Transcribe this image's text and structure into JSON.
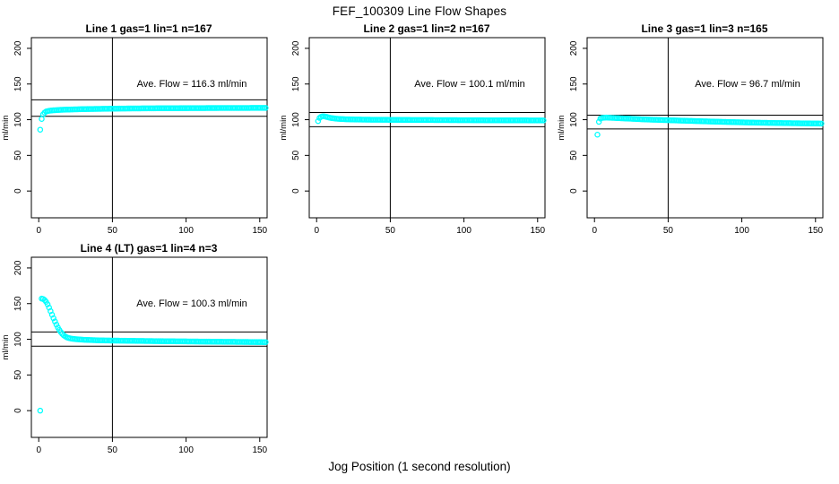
{
  "figure": {
    "title": "FEF_100309  Line Flow Shapes",
    "xlabel": "Jog Position (1 second resolution)"
  },
  "chart_data": {
    "type": "scatter",
    "title": "FEF_100309  Line Flow Shapes",
    "xlabel": "Jog Position (1 second resolution)",
    "ylabel": "ml/min",
    "marker": "open-circle",
    "marker_color": "#00FFFF",
    "axis_color": "#000000",
    "background": "#FFFFFF",
    "grid": false,
    "xlim": [
      -5,
      155
    ],
    "ylim": [
      -37.5,
      215
    ],
    "x_ticks": [
      0,
      50,
      100,
      150
    ],
    "y_ticks": [
      0,
      50,
      100,
      150,
      200
    ],
    "vline_x": 50,
    "points_note": "points are [jog_position_s, flow_ml_min] control vertices of the dense 1-point-per-second scatter band; values read off axes",
    "subplots": [
      {
        "title": "Line 1 gas=1 lin=1 n=167",
        "annotation": "Ave. Flow =  116.3  ml/min",
        "avg_flow_ml_min": 116.3,
        "hlines": [
          127.9,
          104.7
        ],
        "points": [
          [
            1,
            86
          ],
          [
            2,
            101
          ],
          [
            3,
            107.5
          ],
          [
            4,
            110
          ],
          [
            5,
            111.5
          ],
          [
            7,
            112.5
          ],
          [
            10,
            113.2
          ],
          [
            15,
            113.8
          ],
          [
            20,
            114.2
          ],
          [
            30,
            114.8
          ],
          [
            45,
            115.3
          ],
          [
            60,
            115.7
          ],
          [
            80,
            116
          ],
          [
            100,
            116.2
          ],
          [
            125,
            116.4
          ],
          [
            154,
            116.5
          ]
        ]
      },
      {
        "title": "Line 2 gas=1 lin=2 n=167",
        "annotation": "Ave. Flow =  100.1  ml/min",
        "avg_flow_ml_min": 100.1,
        "hlines": [
          110.1,
          90.1
        ],
        "points": [
          [
            1,
            98
          ],
          [
            2,
            102.5
          ],
          [
            3,
            104
          ],
          [
            4,
            104.8
          ],
          [
            5,
            104.7
          ],
          [
            6,
            104.3
          ],
          [
            8,
            103.2
          ],
          [
            10,
            102.3
          ],
          [
            13,
            101.5
          ],
          [
            16,
            101
          ],
          [
            20,
            100.6
          ],
          [
            25,
            100.3
          ],
          [
            35,
            100
          ],
          [
            50,
            99.8
          ],
          [
            70,
            99.6
          ],
          [
            100,
            99.3
          ],
          [
            125,
            99.1
          ],
          [
            154,
            99
          ]
        ]
      },
      {
        "title": "Line 3 gas=1 lin=3 n=165",
        "annotation": "Ave. Flow =  96.7  ml/min",
        "avg_flow_ml_min": 96.7,
        "hlines": [
          106.4,
          87.0
        ],
        "points": [
          [
            2,
            79
          ],
          [
            3,
            97
          ],
          [
            4,
            101.5
          ],
          [
            5,
            102.5
          ],
          [
            8,
            103
          ],
          [
            15,
            102.3
          ],
          [
            25,
            101.3
          ],
          [
            35,
            100.3
          ],
          [
            50,
            99.3
          ],
          [
            70,
            98
          ],
          [
            90,
            96.8
          ],
          [
            110,
            95.8
          ],
          [
            130,
            95.2
          ],
          [
            154,
            94.6
          ]
        ]
      },
      {
        "title": "Line 4 (LT) gas=1 lin=4 n=3",
        "annotation": "Ave. Flow =  100.3  ml/min",
        "avg_flow_ml_min": 100.3,
        "hlines": [
          110.3,
          90.3
        ],
        "points": [
          [
            1,
            0
          ],
          [
            2,
            157
          ],
          [
            3,
            156.5
          ],
          [
            4,
            155
          ],
          [
            5,
            152.5
          ],
          [
            6,
            149
          ],
          [
            7,
            144.5
          ],
          [
            8,
            139.5
          ],
          [
            9,
            134.5
          ],
          [
            10,
            129.5
          ],
          [
            11,
            125
          ],
          [
            12,
            120.5
          ],
          [
            13,
            116.5
          ],
          [
            14,
            113
          ],
          [
            15,
            110
          ],
          [
            16,
            107.5
          ],
          [
            17,
            105.5
          ],
          [
            18,
            104
          ],
          [
            19,
            102.8
          ],
          [
            20,
            102
          ],
          [
            22,
            101
          ],
          [
            25,
            100.2
          ],
          [
            28,
            99.7
          ],
          [
            32,
            99.2
          ],
          [
            40,
            98.6
          ],
          [
            50,
            98.2
          ],
          [
            65,
            97.8
          ],
          [
            80,
            97.4
          ],
          [
            100,
            97
          ],
          [
            120,
            96.6
          ],
          [
            154,
            96
          ]
        ]
      }
    ]
  }
}
